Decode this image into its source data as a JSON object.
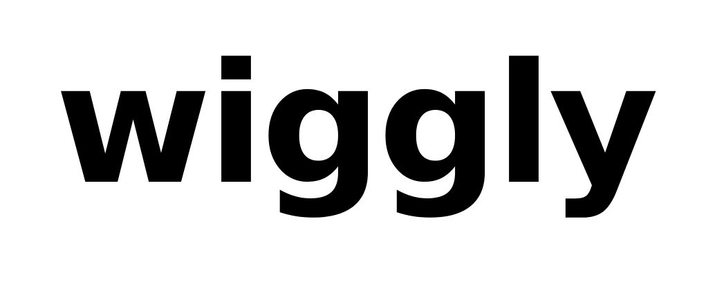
{
  "brand": {
    "wordmark": "wiggly",
    "color": "#000000",
    "background": "#ffffff"
  }
}
